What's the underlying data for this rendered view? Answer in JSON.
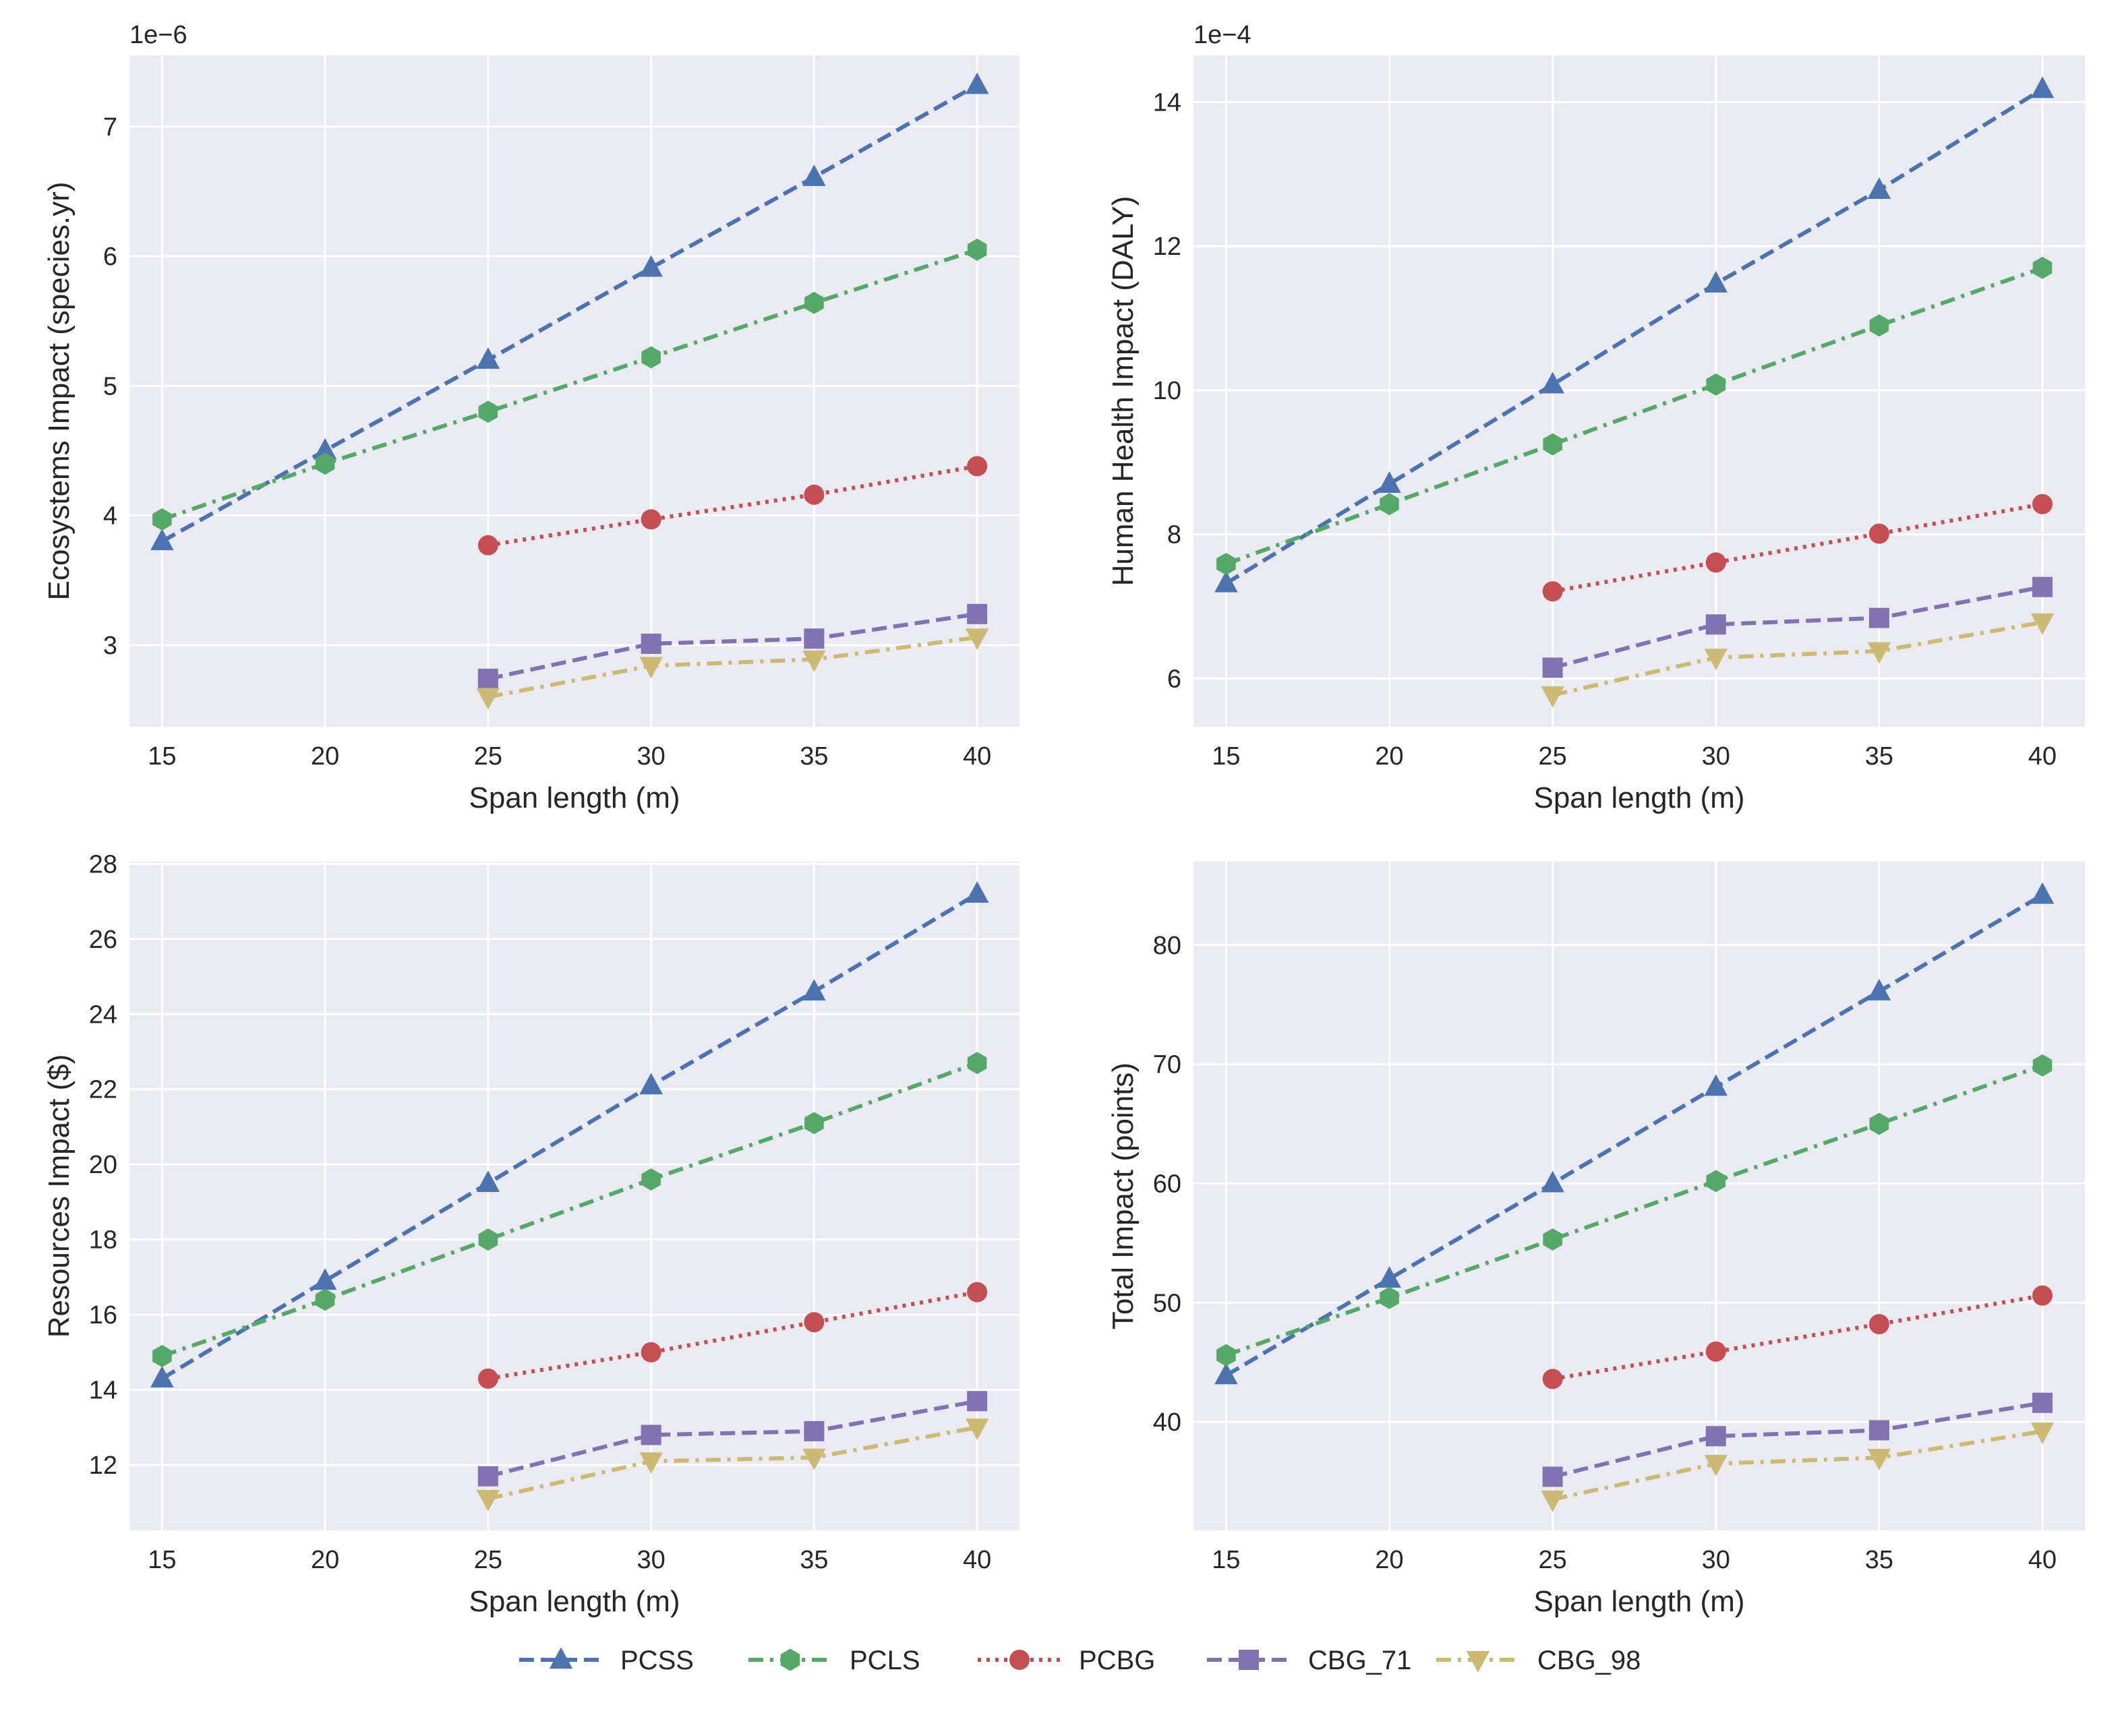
{
  "chart_data": [
    {
      "type": "line",
      "xlabel": "Span length (m)",
      "ylabel": "Ecosystems Impact (species.yr)",
      "y_offset_label": "1e−6",
      "xlim": [
        14,
        41.3
      ],
      "ylim": [
        2.37,
        7.55
      ],
      "x_ticks": [
        15,
        20,
        25,
        30,
        35,
        40
      ],
      "y_ticks": [
        3,
        4,
        5,
        6,
        7
      ],
      "grid": true,
      "series": [
        {
          "name": "PCSS",
          "x": [
            15,
            20,
            25,
            30,
            35,
            40
          ],
          "values": [
            3.8,
            4.5,
            5.2,
            5.91,
            6.61,
            7.32
          ]
        },
        {
          "name": "PCLS",
          "x": [
            15,
            20,
            25,
            30,
            35,
            40
          ],
          "values": [
            3.97,
            4.4,
            4.8,
            5.22,
            5.64,
            6.05
          ]
        },
        {
          "name": "PCBG",
          "x": [
            25,
            30,
            35,
            40
          ],
          "values": [
            3.77,
            3.97,
            4.16,
            4.38
          ]
        },
        {
          "name": "CBG_71",
          "x": [
            25,
            30,
            35,
            40
          ],
          "values": [
            2.74,
            3.01,
            3.05,
            3.24
          ]
        },
        {
          "name": "CBG_98",
          "x": [
            25,
            30,
            35,
            40
          ],
          "values": [
            2.6,
            2.84,
            2.89,
            3.06
          ]
        }
      ]
    },
    {
      "type": "line",
      "xlabel": "Span length (m)",
      "ylabel": "Human Health Impact (DALY)",
      "y_offset_label": "1e−4",
      "xlim": [
        14,
        41.3
      ],
      "ylim": [
        5.33,
        14.65
      ],
      "x_ticks": [
        15,
        20,
        25,
        30,
        35,
        40
      ],
      "y_ticks": [
        6,
        8,
        10,
        12,
        14
      ],
      "grid": true,
      "series": [
        {
          "name": "PCSS",
          "x": [
            15,
            20,
            25,
            30,
            35,
            40
          ],
          "values": [
            7.32,
            8.7,
            10.08,
            11.48,
            12.78,
            14.18
          ]
        },
        {
          "name": "PCLS",
          "x": [
            15,
            20,
            25,
            30,
            35,
            40
          ],
          "values": [
            7.59,
            8.42,
            9.25,
            10.08,
            10.9,
            11.7
          ]
        },
        {
          "name": "PCBG",
          "x": [
            25,
            30,
            35,
            40
          ],
          "values": [
            7.21,
            7.61,
            8.01,
            8.42
          ]
        },
        {
          "name": "CBG_71",
          "x": [
            25,
            30,
            35,
            40
          ],
          "values": [
            6.15,
            6.75,
            6.84,
            7.27
          ]
        },
        {
          "name": "CBG_98",
          "x": [
            25,
            30,
            35,
            40
          ],
          "values": [
            5.77,
            6.29,
            6.38,
            6.78
          ]
        }
      ]
    },
    {
      "type": "line",
      "xlabel": "Span length (m)",
      "ylabel": "Resources Impact ($)",
      "xlim": [
        14,
        41.3
      ],
      "ylim": [
        10.26,
        28.06
      ],
      "x_ticks": [
        15,
        20,
        25,
        30,
        35,
        40
      ],
      "y_ticks": [
        12,
        14,
        16,
        18,
        20,
        22,
        24,
        26,
        28
      ],
      "grid": true,
      "series": [
        {
          "name": "PCSS",
          "x": [
            15,
            20,
            25,
            30,
            35,
            40
          ],
          "values": [
            14.3,
            16.9,
            19.5,
            22.1,
            24.6,
            27.2
          ]
        },
        {
          "name": "PCLS",
          "x": [
            15,
            20,
            25,
            30,
            35,
            40
          ],
          "values": [
            14.9,
            16.4,
            18.0,
            19.6,
            21.1,
            22.7
          ]
        },
        {
          "name": "PCBG",
          "x": [
            25,
            30,
            35,
            40
          ],
          "values": [
            14.3,
            15.0,
            15.8,
            16.6
          ]
        },
        {
          "name": "CBG_71",
          "x": [
            25,
            30,
            35,
            40
          ],
          "values": [
            11.7,
            12.8,
            12.9,
            13.7
          ]
        },
        {
          "name": "CBG_98",
          "x": [
            25,
            30,
            35,
            40
          ],
          "values": [
            11.1,
            12.1,
            12.2,
            13.0
          ]
        }
      ]
    },
    {
      "type": "line",
      "xlabel": "Span length (m)",
      "ylabel": "Total Impact (points)",
      "xlim": [
        14,
        41.3
      ],
      "ylim": [
        30.9,
        87.0
      ],
      "x_ticks": [
        15,
        20,
        25,
        30,
        35,
        40
      ],
      "y_ticks": [
        40,
        50,
        60,
        70,
        80
      ],
      "grid": true,
      "series": [
        {
          "name": "PCSS",
          "x": [
            15,
            20,
            25,
            30,
            35,
            40
          ],
          "values": [
            43.9,
            52.0,
            60.0,
            68.1,
            76.1,
            84.2
          ]
        },
        {
          "name": "PCLS",
          "x": [
            15,
            20,
            25,
            30,
            35,
            40
          ],
          "values": [
            45.6,
            50.4,
            55.3,
            60.2,
            65.0,
            69.9
          ]
        },
        {
          "name": "PCBG",
          "x": [
            25,
            30,
            35,
            40
          ],
          "values": [
            43.6,
            45.9,
            48.2,
            50.6
          ]
        },
        {
          "name": "CBG_71",
          "x": [
            25,
            30,
            35,
            40
          ],
          "values": [
            35.4,
            38.8,
            39.3,
            41.6
          ]
        },
        {
          "name": "CBG_98",
          "x": [
            25,
            30,
            35,
            40
          ],
          "values": [
            33.5,
            36.5,
            37.0,
            39.2
          ]
        }
      ]
    }
  ],
  "legend": {
    "placement": "bottom-center",
    "entries": [
      "PCSS",
      "PCLS",
      "PCBG",
      "CBG_71",
      "CBG_98"
    ]
  },
  "series_styles": {
    "PCSS": {
      "color": "#4c72b0",
      "marker": "triangle-up",
      "dash": "dashed"
    },
    "PCLS": {
      "color": "#55a868",
      "marker": "hexagon",
      "dash": "dashdot"
    },
    "PCBG": {
      "color": "#c44e52",
      "marker": "circle",
      "dash": "dotted"
    },
    "CBG_71": {
      "color": "#8172b2",
      "marker": "square",
      "dash": "dashed"
    },
    "CBG_98": {
      "color": "#ccb974",
      "marker": "triangle-down",
      "dash": "dashdot"
    }
  },
  "theme": {
    "axes_face": "#eaeaf2",
    "grid": "#ffffff",
    "text": "#262626"
  }
}
